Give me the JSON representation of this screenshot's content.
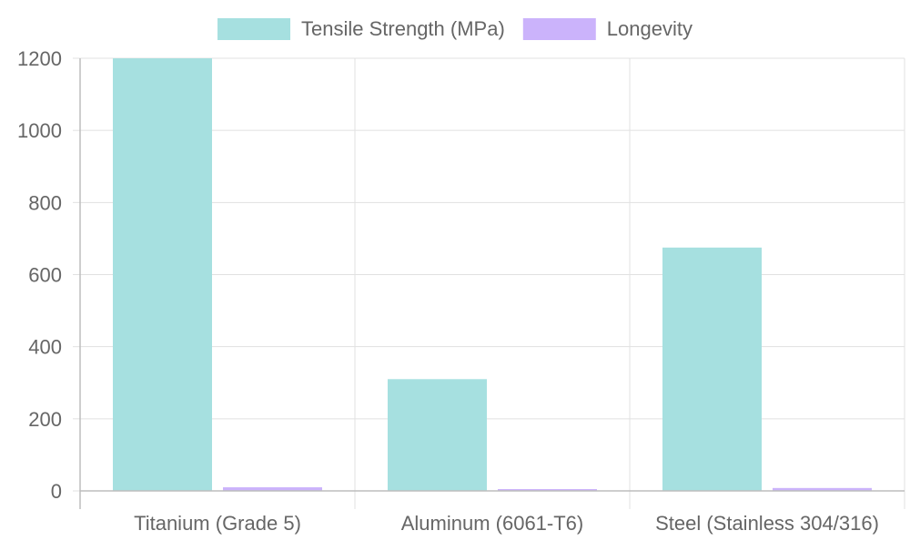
{
  "chart_data": {
    "type": "bar",
    "categories": [
      "Titanium (Grade 5)",
      "Aluminum (6061-T6)",
      "Steel (Stainless 304/316)"
    ],
    "series": [
      {
        "name": "Tensile Strength (MPa)",
        "values": [
          1200,
          310,
          675
        ],
        "color": "#a6e0e0"
      },
      {
        "name": "Longevity",
        "values": [
          10,
          5,
          8
        ],
        "color": "#cbb3fb"
      }
    ],
    "ylim": [
      0,
      1200
    ],
    "yticks": [
      0,
      200,
      400,
      600,
      800,
      1000,
      1200
    ],
    "title": "",
    "xlabel": "",
    "ylabel": "",
    "grid": true,
    "legend_position": "top-center"
  }
}
